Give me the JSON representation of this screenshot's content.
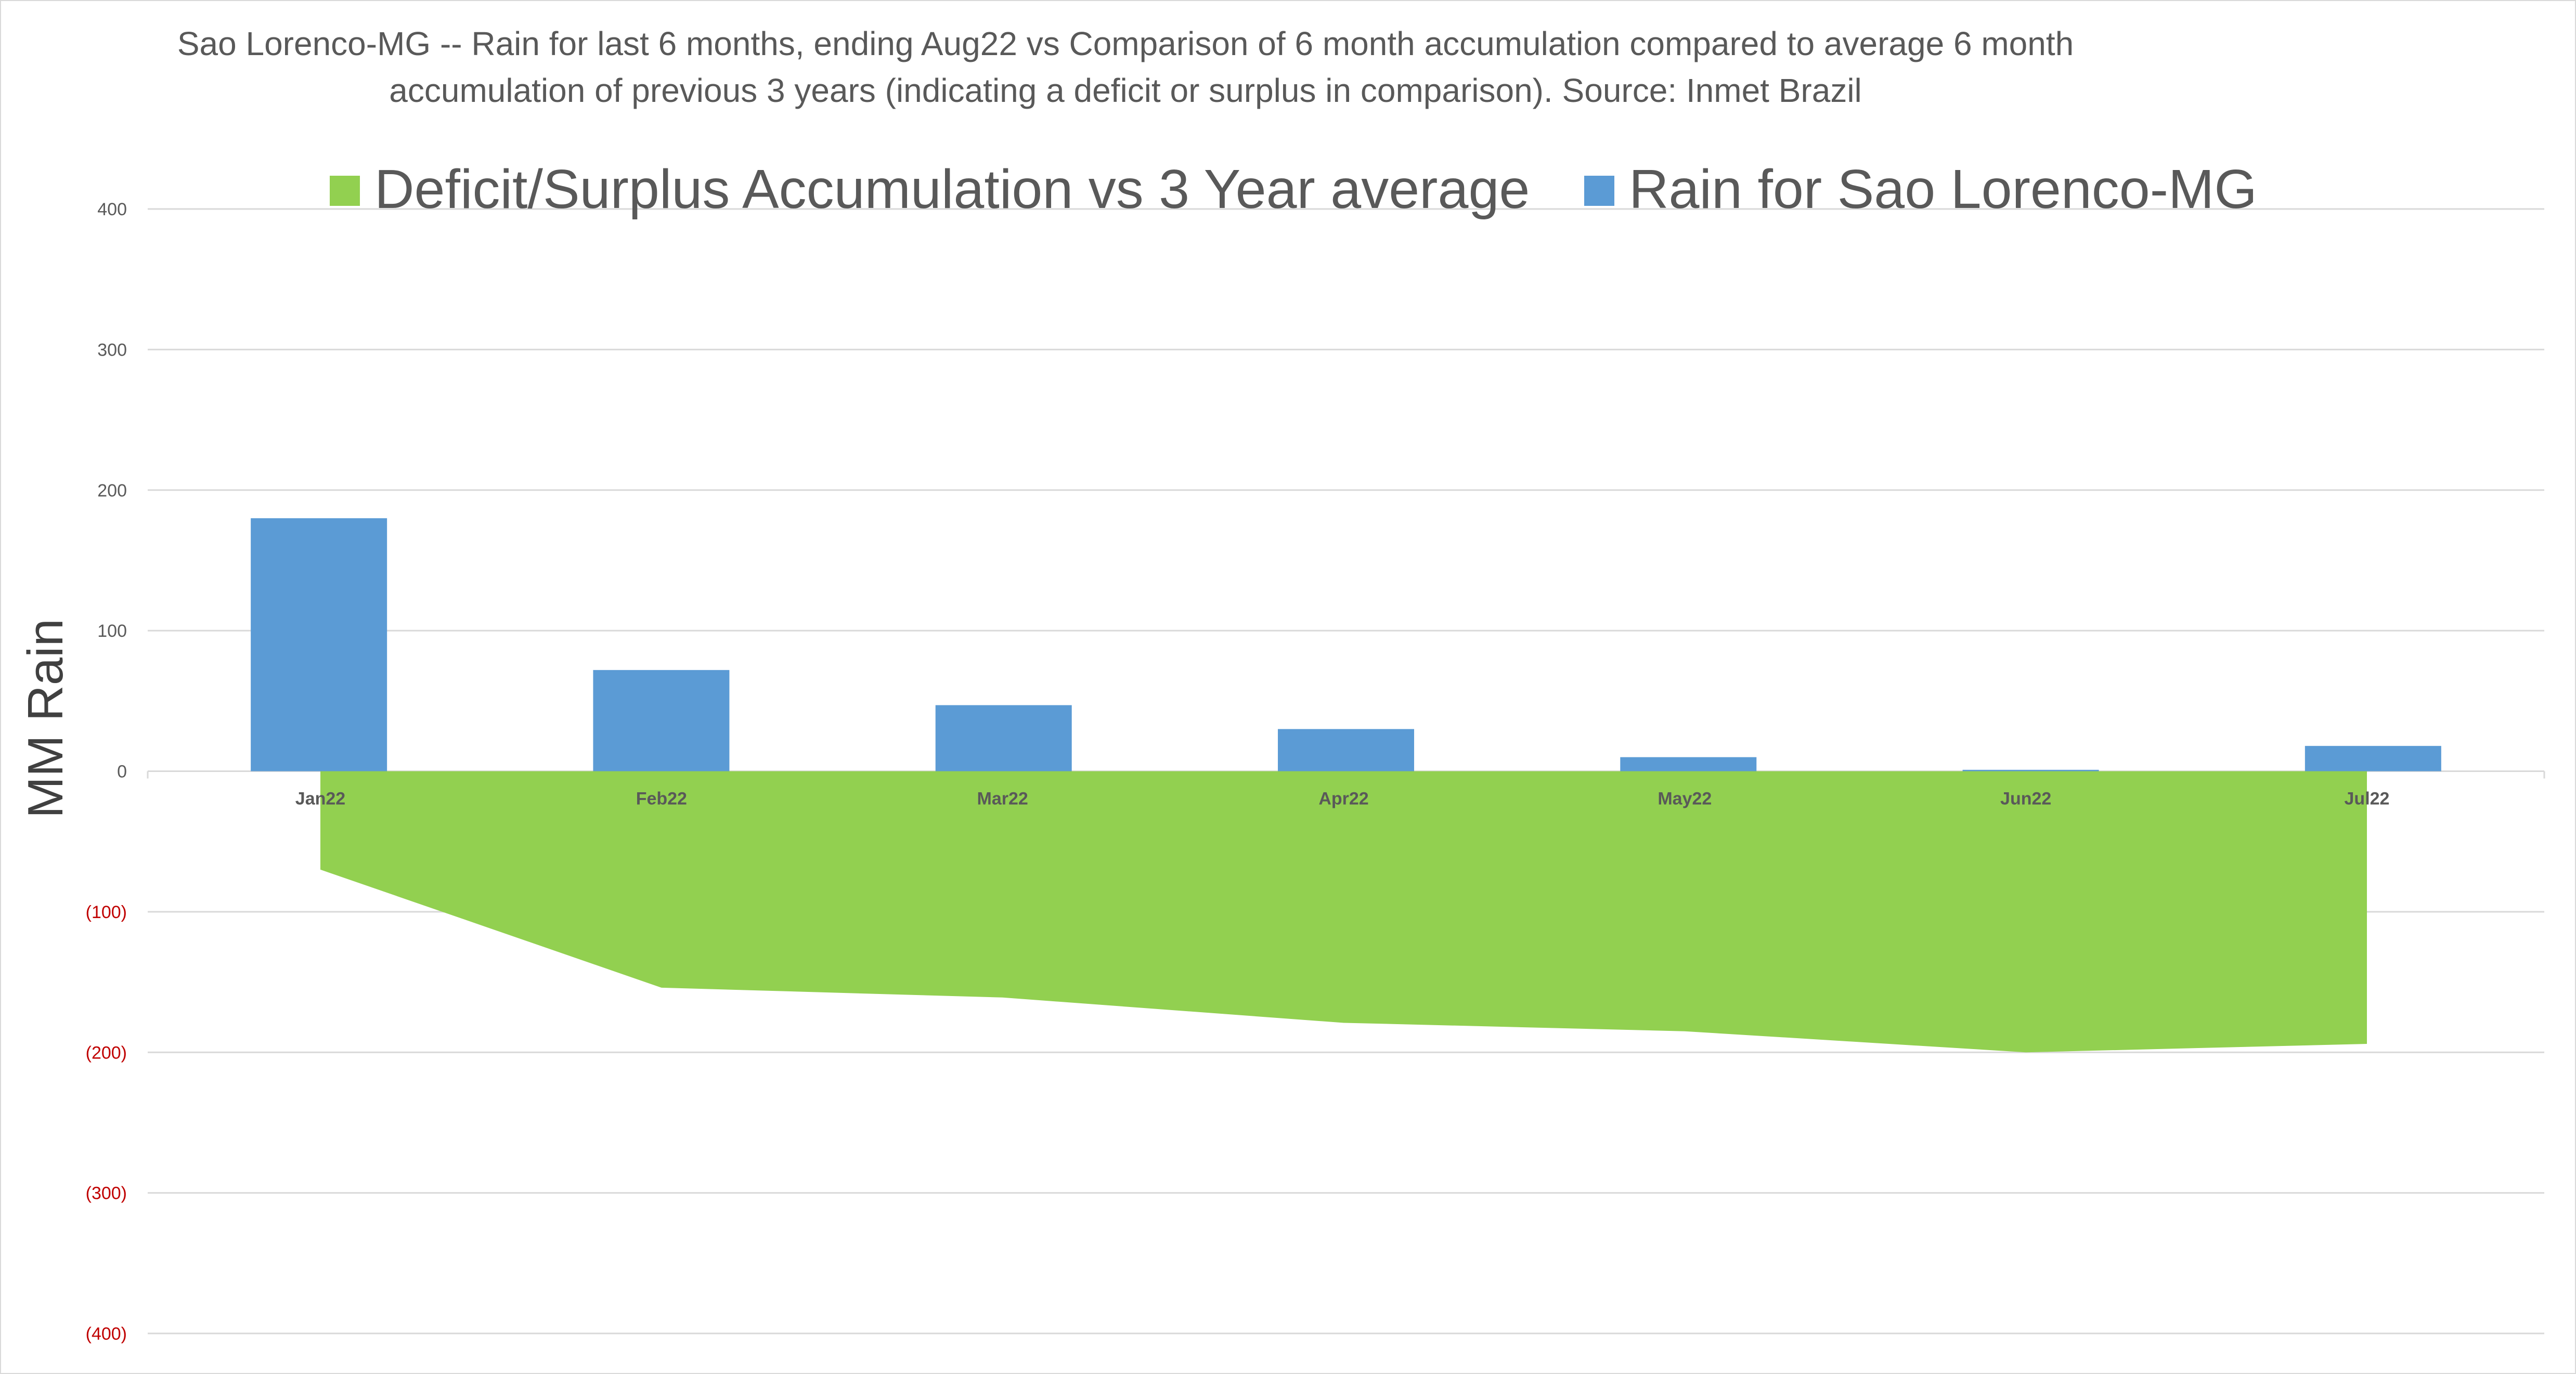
{
  "chart_data": {
    "type": "bar",
    "title_lines": [
      "Sao Lorenco-MG -- Rain for last 6 months, ending Aug22  vs Comparison of 6 month accumulation compared to average 6 month",
      "accumulation of previous 3 years  (indicating a deficit or surplus in comparison). Source: Inmet Brazil"
    ],
    "ylabel": "MM Rain",
    "xlabel": "",
    "ylim": [
      -400,
      400
    ],
    "y_ticks": [
      400,
      300,
      200,
      100,
      0,
      -100,
      -200,
      -300,
      -400
    ],
    "y_tick_labels": [
      "400",
      "300",
      "200",
      "100",
      "0",
      "(100)",
      "(200)",
      "(300)",
      "(400)"
    ],
    "categories": [
      "Jan22",
      "Feb22",
      "Mar22",
      "Apr22",
      "May22",
      "Jun22",
      "Jul22"
    ],
    "grid": true,
    "legend_position": "top",
    "series": [
      {
        "name": "Deficit/Surplus Accumulation vs 3 Year average",
        "type": "area",
        "color": "#92d050",
        "values": [
          -70,
          -154,
          -161,
          -179,
          -185,
          -200,
          -194
        ]
      },
      {
        "name": "Rain for Sao Lorenco-MG",
        "type": "bar",
        "color": "#5b9bd5",
        "values": [
          180,
          72,
          47,
          30,
          10,
          1,
          18
        ]
      }
    ],
    "colors": {
      "grid": "#d9d9d9",
      "negative_tick": "#c00000",
      "text": "#595959"
    }
  }
}
